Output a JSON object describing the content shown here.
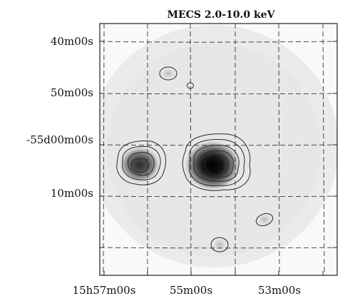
{
  "title": "MECS 2.0-10.0 keV",
  "y_labels": [
    "40m00s",
    "50m00s",
    "-55d00m00s",
    "10m00s"
  ],
  "x_labels": [
    "15h57m00s",
    "55m00s",
    "53m00s"
  ],
  "colors": {
    "frame": "#222222",
    "grid": "#333333",
    "contour": "#2b2b2b",
    "background": "#ffffff"
  }
}
